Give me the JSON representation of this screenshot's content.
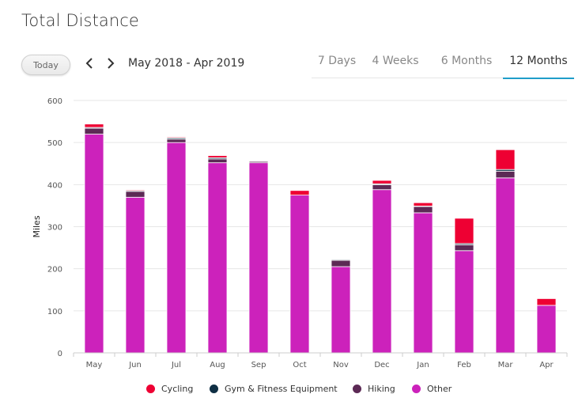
{
  "header": {
    "title": "Total Distance"
  },
  "toolbar": {
    "today_label": "Today",
    "prev_icon": "chevron-left-icon",
    "next_icon": "chevron-right-icon",
    "range_label": "May 2018 - Apr 2019"
  },
  "tabs": [
    {
      "label": "7 Days",
      "active": false
    },
    {
      "label": "4 Weeks",
      "active": false
    },
    {
      "label": "6 Months",
      "active": false
    },
    {
      "label": "12 Months",
      "active": true
    }
  ],
  "chart_data": {
    "type": "bar",
    "stacked": true,
    "ylabel": "Miles",
    "xlabel": "",
    "ylim": [
      0,
      600
    ],
    "yticks": [
      0,
      100,
      200,
      300,
      400,
      500,
      600
    ],
    "grid": true,
    "legend_position": "bottom",
    "categories": [
      "May",
      "Jun",
      "Jul",
      "Aug",
      "Sep",
      "Oct",
      "Nov",
      "Dec",
      "Jan",
      "Feb",
      "Mar",
      "Apr"
    ],
    "series": [
      {
        "name": "Other",
        "color": "#cc22bb",
        "values": [
          520,
          370,
          500,
          452,
          452,
          375,
          205,
          388,
          333,
          243,
          416,
          113
        ]
      },
      {
        "name": "Hiking",
        "color": "#5c2a55",
        "values": [
          14,
          14,
          8,
          9,
          3,
          0,
          15,
          12,
          15,
          14,
          16,
          0
        ]
      },
      {
        "name": "Gym & Fitness Equipment",
        "color": "#0f2f44",
        "values": [
          2,
          2,
          3,
          3,
          1,
          0,
          2,
          2,
          1,
          3,
          4,
          0
        ]
      },
      {
        "name": "Cycling",
        "color": "#ee0033",
        "values": [
          8,
          2,
          2,
          5,
          0,
          11,
          1,
          8,
          8,
          60,
          47,
          16
        ]
      }
    ],
    "legend_order": [
      "Cycling",
      "Gym & Fitness Equipment",
      "Hiking",
      "Other"
    ]
  }
}
